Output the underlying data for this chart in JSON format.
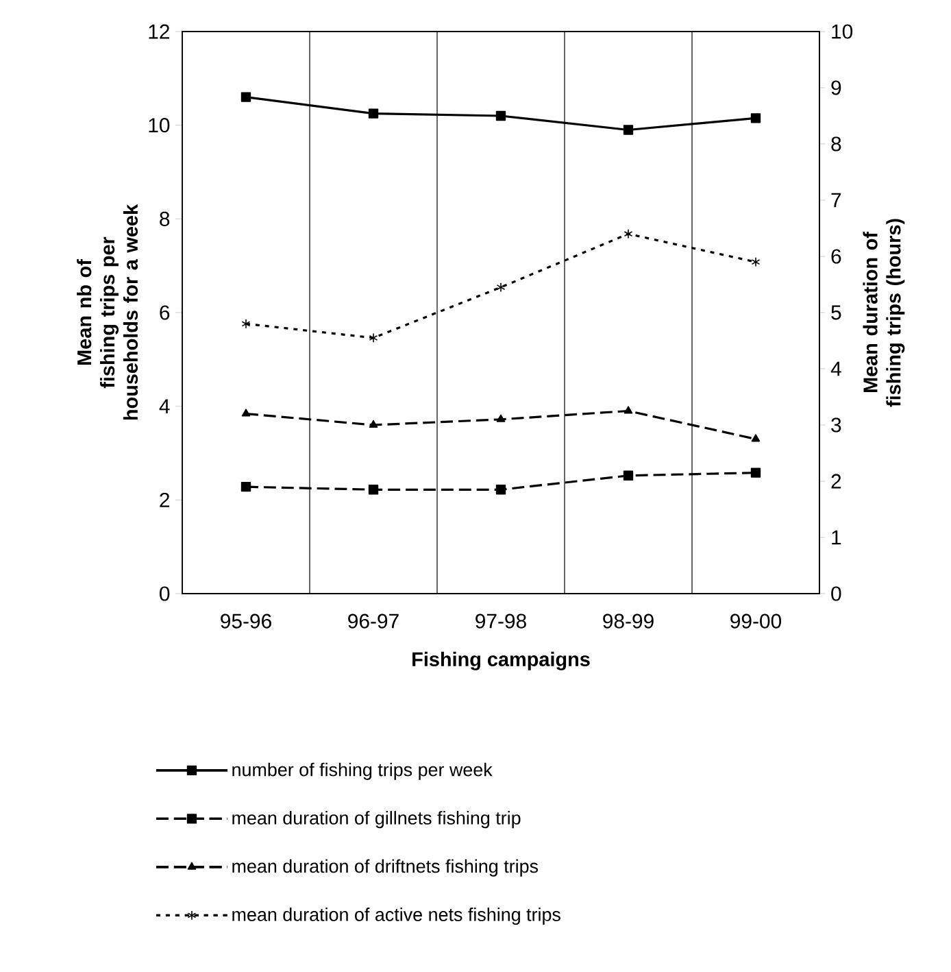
{
  "chart_data": {
    "type": "line",
    "categories": [
      "95-96",
      "96-97",
      "97-98",
      "98-99",
      "99-00"
    ],
    "xlabel": "Fishing campaigns",
    "ylabel": "Mean nb of fishing trips per households for a week",
    "y2label": "Mean duration of fishing trips (hours)",
    "ylim": [
      0,
      12
    ],
    "yticks": [
      0,
      2,
      4,
      6,
      8,
      10,
      12
    ],
    "y2lim": [
      0,
      10
    ],
    "y2ticks": [
      0,
      1,
      2,
      3,
      4,
      5,
      6,
      7,
      8,
      9,
      10
    ],
    "grid": "x",
    "legend": "bottom",
    "series": [
      {
        "name": "number of fishing trips per week",
        "color": "#000000",
        "marker": "square",
        "line_style": "solid",
        "values": [
          10.6,
          10.25,
          10.2,
          9.9,
          10.15
        ]
      },
      {
        "name": "mean duration of gillnets fishing trip",
        "color": "#000000",
        "marker": "square",
        "line_style": "dashed",
        "axis": "y2",
        "values": [
          1.9,
          1.85,
          1.85,
          2.1,
          2.15
        ]
      },
      {
        "name": "mean duration of driftnets fishing trips",
        "color": "#000000",
        "marker": "triangle",
        "line_style": "dashed",
        "axis": "y2",
        "values": [
          3.2,
          3.0,
          3.1,
          3.25,
          2.75
        ]
      },
      {
        "name": "mean duration of active nets fishing trips",
        "color": "#000000",
        "marker": "cross",
        "line_style": "dotted",
        "axis": "y2",
        "values": [
          4.8,
          4.55,
          5.45,
          6.4,
          5.9
        ]
      }
    ]
  }
}
